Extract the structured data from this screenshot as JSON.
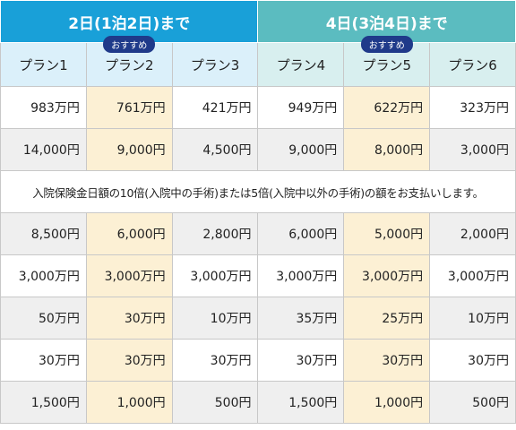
{
  "header": {
    "groups": [
      "2日(1泊2日)まで",
      "4日(3泊4日)まで"
    ],
    "plans": [
      {
        "name": "プラン1"
      },
      {
        "name": "プラン2",
        "badge": "おすすめ"
      },
      {
        "name": "プラン3"
      },
      {
        "name": "プラン4"
      },
      {
        "name": "プラン5",
        "badge": "おすすめ"
      },
      {
        "name": "プラン6"
      }
    ]
  },
  "table": {
    "rows": [
      [
        "983万円",
        "761万円",
        "421万円",
        "949万円",
        "622万円",
        "323万円"
      ],
      [
        "14,000円",
        "9,000円",
        "4,500円",
        "9,000円",
        "8,000円",
        "3,000円"
      ],
      "入院保険金日額の10倍(入院中の手術)または5倍(入院中以外の手術)の額をお支払いします。",
      [
        "8,500円",
        "6,000円",
        "2,800円",
        "6,000円",
        "5,000円",
        "2,000円"
      ],
      [
        "3,000万円",
        "3,000万円",
        "3,000万円",
        "3,000万円",
        "3,000万円",
        "3,000万円"
      ],
      [
        "50万円",
        "30万円",
        "10万円",
        "35万円",
        "25万円",
        "10万円"
      ],
      [
        "30万円",
        "30万円",
        "30万円",
        "30万円",
        "30万円",
        "30万円"
      ],
      [
        "1,500円",
        "1,000円",
        "500円",
        "1,500円",
        "1,000円",
        "500円"
      ]
    ]
  }
}
